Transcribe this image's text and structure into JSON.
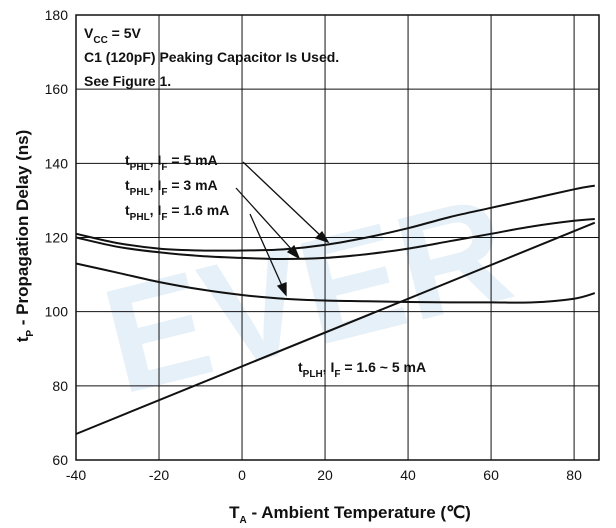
{
  "chart_data": {
    "type": "line",
    "xlabel": {
      "main": "T",
      "sub": "A",
      "rest": " - Ambient Temperature (℃)"
    },
    "ylabel": {
      "main": "t",
      "sub": "P",
      "rest": " - Propagation Delay (ns)"
    },
    "xlim": [
      -40,
      86
    ],
    "ylim": [
      60,
      180
    ],
    "xticks": [
      -40,
      -20,
      0,
      20,
      40,
      60,
      80
    ],
    "yticks": [
      60,
      80,
      100,
      120,
      140,
      160,
      180
    ],
    "grid": true,
    "watermark": "EVER",
    "notes": [
      {
        "main": "V",
        "sub": "CC",
        "rest": " = 5V"
      },
      {
        "main": "C1 (120pF) Peaking Capacitor Is Used.",
        "sub": "",
        "rest": ""
      },
      {
        "main": "See Figure 1.",
        "sub": "",
        "rest": ""
      }
    ],
    "series": [
      {
        "label": {
          "p1": "t",
          "s1": "PHL",
          "p2": ", I",
          "s2": "F",
          "p3": " = 5 mA"
        },
        "x": [
          -40,
          -30,
          -20,
          -10,
          0,
          10,
          20,
          30,
          40,
          50,
          60,
          70,
          80,
          85
        ],
        "y": [
          121,
          118.5,
          117,
          116.5,
          116.5,
          116.8,
          118,
          120,
          122.5,
          125.5,
          128,
          130.5,
          133,
          134
        ]
      },
      {
        "label": {
          "p1": "t",
          "s1": "PHL",
          "p2": ", I",
          "s2": "F",
          "p3": " = 3 mA"
        },
        "x": [
          -40,
          -30,
          -20,
          -10,
          0,
          10,
          20,
          30,
          40,
          50,
          60,
          70,
          80,
          85
        ],
        "y": [
          120,
          117.5,
          116,
          115,
          114.5,
          114.2,
          114.5,
          115.5,
          117,
          119,
          121,
          123,
          124.5,
          125
        ]
      },
      {
        "label": {
          "p1": "t",
          "s1": "PHL",
          "p2": ", I",
          "s2": "F",
          "p3": " = 1.6 mA"
        },
        "x": [
          -40,
          -30,
          -20,
          -10,
          0,
          10,
          20,
          30,
          40,
          50,
          60,
          70,
          80,
          85
        ],
        "y": [
          113,
          110.5,
          108,
          106,
          104.5,
          103.5,
          103,
          102.8,
          102.6,
          102.5,
          102.5,
          102.5,
          103.5,
          105
        ]
      },
      {
        "label": {
          "p1": "t",
          "s1": "PLH",
          "p2": ", I",
          "s2": "F",
          "p3": " = 1.6 ~ 5 mA"
        },
        "x": [
          -40,
          85
        ],
        "y": [
          67,
          124
        ]
      }
    ]
  }
}
